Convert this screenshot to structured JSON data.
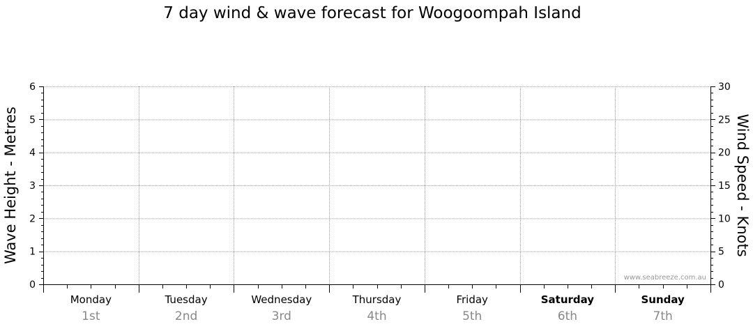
{
  "chart_data": {
    "type": "line",
    "title": "7 day wind & wave forecast for Woogoompah Island",
    "ylabel_left": "Wave Height - Metres",
    "ylabel_right": "Wind Speed - Knots",
    "ylim_left": [
      0,
      6
    ],
    "yticks_left": [
      "0",
      "1",
      "2",
      "3",
      "4",
      "5",
      "6"
    ],
    "ylim_right": [
      0,
      30
    ],
    "yticks_right": [
      "0",
      "5",
      "10",
      "15",
      "20",
      "25",
      "30"
    ],
    "days": [
      {
        "name": "Monday",
        "date": "1st",
        "bold": false
      },
      {
        "name": "Tuesday",
        "date": "2nd",
        "bold": false
      },
      {
        "name": "Wednesday",
        "date": "3rd",
        "bold": false
      },
      {
        "name": "Thursday",
        "date": "4th",
        "bold": false
      },
      {
        "name": "Friday",
        "date": "5th",
        "bold": false
      },
      {
        "name": "Saturday",
        "date": "6th",
        "bold": true
      },
      {
        "name": "Sunday",
        "date": "7th",
        "bold": true
      }
    ],
    "series": [],
    "grid": true,
    "watermark": "www.seabreeze.com.au"
  },
  "colors": {
    "axis": "#000000",
    "grid": "#9a9a9a",
    "date_text": "#888888",
    "watermark": "#999999"
  }
}
